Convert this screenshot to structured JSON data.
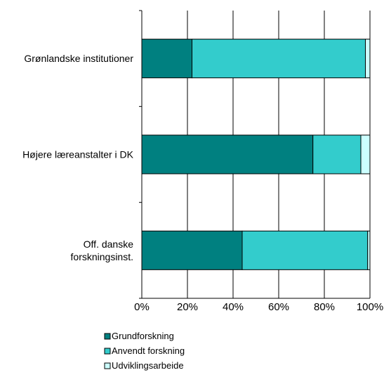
{
  "chart_data": {
    "type": "bar",
    "orientation": "horizontal",
    "stacked": true,
    "percent_stacked": true,
    "title": "",
    "xlabel": "",
    "ylabel": "",
    "xlim": [
      0,
      100
    ],
    "x_ticks": [
      0,
      20,
      40,
      60,
      80,
      100
    ],
    "x_tick_labels": [
      "0%",
      "20%",
      "40%",
      "60%",
      "80%",
      "100%"
    ],
    "grid": "vertical gridlines",
    "legend_position": "bottom-left",
    "categories": [
      {
        "label_lines": [
          "Grønlandske institutioner"
        ]
      },
      {
        "label_lines": [
          "Højere læreanstalter i DK"
        ]
      },
      {
        "label_lines": [
          "Off. danske",
          "forskningsinst."
        ]
      }
    ],
    "series": [
      {
        "name": "Grundforskning",
        "color": "#008080",
        "values": [
          22,
          75,
          44
        ]
      },
      {
        "name": "Anvendt forskning",
        "color": "#33CCCC",
        "values": [
          76,
          21,
          55
        ]
      },
      {
        "name": "Udviklingsarbeide",
        "color": "#CCFFFF",
        "values": [
          2,
          4,
          1
        ]
      }
    ]
  }
}
